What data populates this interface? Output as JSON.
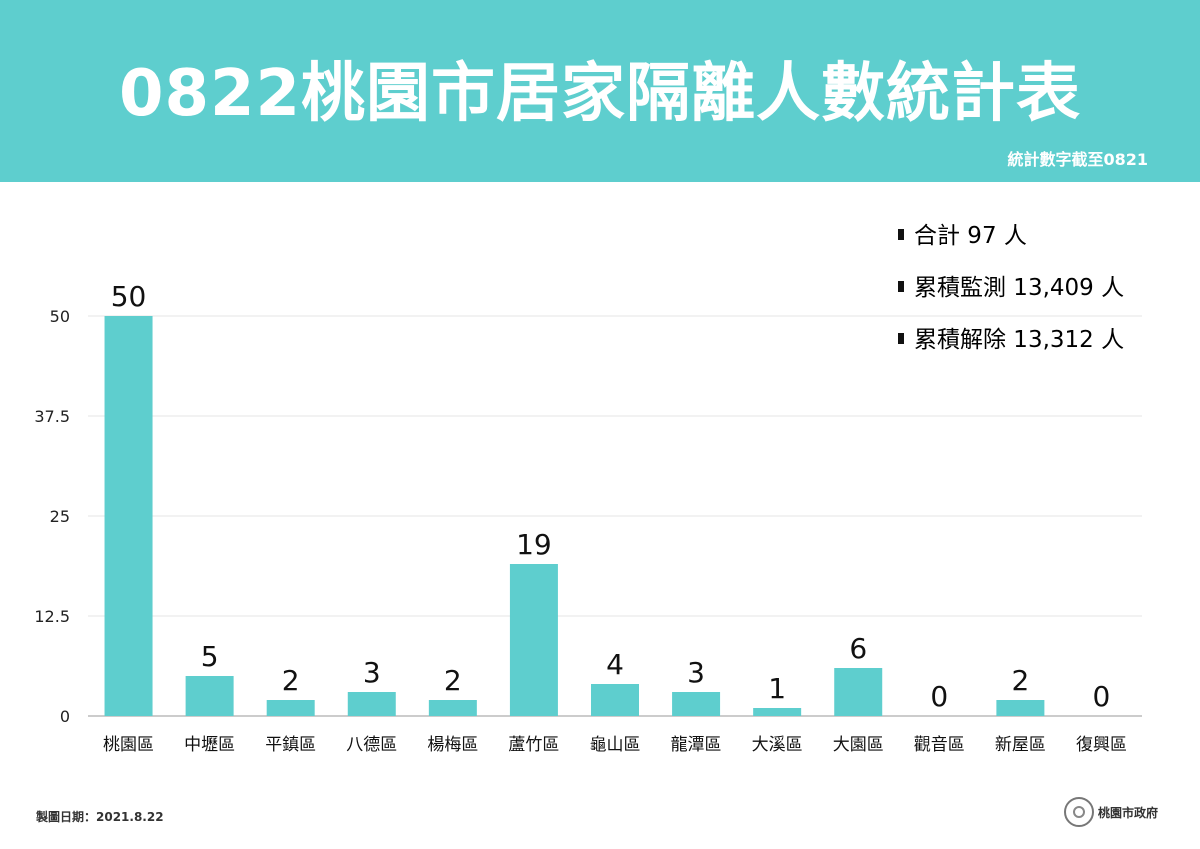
{
  "header": {
    "title": "0822桃園市居家隔離人數統計表",
    "subtitle": "統計數字截至0821",
    "background_color": "#5ecece"
  },
  "summary": [
    "合計 97 人",
    "累積監測 13,409 人",
    "累積解除 13,312 人"
  ],
  "chart_data": {
    "type": "bar",
    "categories": [
      "桃園區",
      "中壢區",
      "平鎮區",
      "八德區",
      "楊梅區",
      "蘆竹區",
      "龜山區",
      "龍潭區",
      "大溪區",
      "大園區",
      "觀音區",
      "新屋區",
      "復興區"
    ],
    "values": [
      50,
      5,
      2,
      3,
      2,
      19,
      4,
      3,
      1,
      6,
      0,
      2,
      0
    ],
    "yticks": [
      "0",
      "12.5",
      "25",
      "37.5",
      "50"
    ],
    "ylim": [
      0,
      50
    ],
    "grid": true,
    "bar_color": "#5ecece",
    "data_labels": true
  },
  "footer": {
    "date_label": "製圖日期：2021.8.22",
    "logo_text": "桃園市政府"
  }
}
